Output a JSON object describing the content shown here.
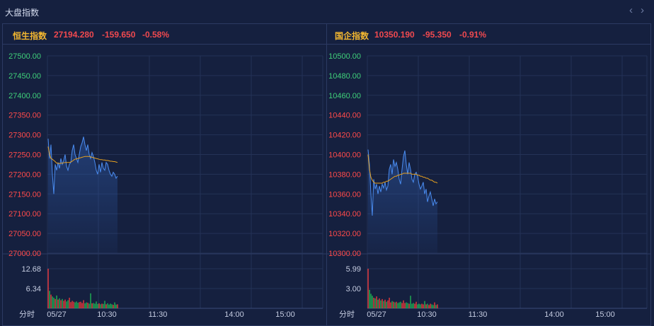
{
  "widget": {
    "title": "大盘指数",
    "prev_icon": "‹",
    "next_icon": "›"
  },
  "panels": [
    {
      "name": "恒生指数",
      "value": "27194.280",
      "change": "-159.650",
      "pct": "-0.58%",
      "y_ticks": [
        "27500.00",
        "27450.00",
        "27400.00",
        "27350.00",
        "27300.00",
        "27250.00",
        "27200.00",
        "27150.00",
        "27100.00",
        "27050.00",
        "27000.00"
      ],
      "y_min": 27000,
      "y_max": 27500,
      "prev_close": 27353.93,
      "vol_ticks": [
        "12.68",
        "6.34"
      ],
      "vol_max": 12.68,
      "x_label": "分时",
      "x_ticks": [
        "05/27",
        "10:30",
        "11:30",
        "14:00",
        "15:00"
      ],
      "price": [
        27290,
        27240,
        27275,
        27200,
        27150,
        27225,
        27210,
        27230,
        27215,
        27240,
        27225,
        27235,
        27250,
        27220,
        27210,
        27225,
        27230,
        27260,
        27275,
        27250,
        27240,
        27230,
        27250,
        27270,
        27280,
        27295,
        27275,
        27260,
        27275,
        27250,
        27240,
        27255,
        27245,
        27230,
        27210,
        27200,
        27225,
        27205,
        27230,
        27215,
        27210,
        27230,
        27225,
        27210,
        27200,
        27195,
        27205,
        27200,
        27190,
        27195
      ],
      "avg": [
        27270,
        27250,
        27240,
        27238,
        27235,
        27232,
        27228,
        27228,
        27227,
        27228,
        27228,
        27229,
        27230,
        27230,
        27230,
        27230,
        27231,
        27233,
        27236,
        27238,
        27239,
        27240,
        27241,
        27242,
        27243,
        27244,
        27245,
        27245,
        27245,
        27245,
        27244,
        27243,
        27242,
        27241,
        27240,
        27239,
        27238,
        27237,
        27237,
        27236,
        27236,
        27235,
        27235,
        27234,
        27233,
        27233,
        27232,
        27232,
        27231,
        27230
      ],
      "volume": [
        12.68,
        5.6,
        4.4,
        3.8,
        3.4,
        3.0,
        4.1,
        2.8,
        3.2,
        2.6,
        3.0,
        2.4,
        2.8,
        2.2,
        2.6,
        3.4,
        2.0,
        2.4,
        2.1,
        1.9,
        2.2,
        1.8,
        2.0,
        2.1,
        1.7,
        2.6,
        1.6,
        1.9,
        1.8,
        1.5,
        4.8,
        1.6,
        1.7,
        1.5,
        2.2,
        1.4,
        1.6,
        1.3,
        1.5,
        1.4,
        2.4,
        1.3,
        1.6,
        1.2,
        1.5,
        1.3,
        1.1,
        1.9,
        1.2,
        1.3
      ]
    },
    {
      "name": "国企指数",
      "value": "10350.190",
      "change": "-95.350",
      "pct": "-0.91%",
      "y_ticks": [
        "10500.00",
        "10480.00",
        "10460.00",
        "10440.00",
        "10420.00",
        "10400.00",
        "10380.00",
        "10360.00",
        "10340.00",
        "10320.00",
        "10300.00"
      ],
      "y_min": 10300,
      "y_max": 10500,
      "prev_close": 10445.54,
      "vol_ticks": [
        "5.99",
        "3.00"
      ],
      "vol_max": 5.99,
      "x_label": "分时",
      "x_ticks": [
        "05/27",
        "10:30",
        "11:30",
        "14:00",
        "15:00"
      ],
      "price": [
        10405,
        10390,
        10360,
        10338,
        10375,
        10365,
        10370,
        10360,
        10368,
        10362,
        10370,
        10366,
        10372,
        10364,
        10368,
        10385,
        10390,
        10380,
        10395,
        10388,
        10392,
        10385,
        10375,
        10370,
        10385,
        10398,
        10404,
        10390,
        10380,
        10392,
        10385,
        10375,
        10372,
        10380,
        10382,
        10378,
        10370,
        10365,
        10368,
        10372,
        10360,
        10365,
        10352,
        10358,
        10362,
        10355,
        10348,
        10355,
        10350,
        10352
      ],
      "avg": [
        10400,
        10385,
        10377,
        10374,
        10372,
        10371,
        10371,
        10371,
        10371,
        10371,
        10371,
        10372,
        10372,
        10373,
        10373,
        10374,
        10375,
        10376,
        10377,
        10378,
        10378,
        10379,
        10379,
        10380,
        10380,
        10381,
        10381,
        10381,
        10381,
        10381,
        10381,
        10380,
        10380,
        10380,
        10380,
        10379,
        10379,
        10378,
        10378,
        10377,
        10377,
        10376,
        10376,
        10375,
        10374,
        10374,
        10373,
        10372,
        10372,
        10371
      ],
      "volume": [
        5.99,
        2.8,
        2.2,
        1.9,
        1.6,
        1.5,
        1.8,
        1.3,
        1.5,
        1.2,
        1.4,
        1.1,
        1.3,
        1.0,
        1.2,
        1.6,
        0.9,
        1.1,
        1.0,
        0.9,
        1.0,
        0.8,
        0.9,
        1.0,
        0.8,
        1.2,
        0.8,
        0.9,
        0.8,
        0.7,
        1.9,
        0.7,
        0.8,
        0.7,
        1.0,
        0.6,
        0.7,
        0.6,
        0.7,
        0.6,
        1.1,
        0.6,
        0.7,
        0.5,
        0.7,
        0.6,
        0.5,
        0.9,
        0.5,
        0.6
      ]
    }
  ],
  "chart_data": [
    {
      "type": "line",
      "title": "恒生指数",
      "ylim": [
        27000,
        27500
      ],
      "x_ticks": [
        "05/27",
        "10:30",
        "11:30",
        "14:00",
        "15:00"
      ],
      "series": [
        {
          "values": [
            27290,
            27240,
            27275,
            27200,
            27150,
            27225,
            27210,
            27230,
            27215,
            27240,
            27225,
            27235,
            27250,
            27220,
            27210,
            27225,
            27230,
            27260,
            27275,
            27250,
            27240,
            27230,
            27250,
            27270,
            27280,
            27295,
            27275,
            27260,
            27275,
            27250,
            27240,
            27255,
            27245,
            27230,
            27210,
            27200,
            27225,
            27205,
            27230,
            27215,
            27210,
            27230,
            27225,
            27210,
            27200,
            27195,
            27205,
            27200,
            27190,
            27195
          ]
        },
        {
          "values": [
            27270,
            27250,
            27240,
            27238,
            27235,
            27232,
            27228,
            27228,
            27227,
            27228,
            27228,
            27229,
            27230,
            27230,
            27230,
            27230,
            27231,
            27233,
            27236,
            27238,
            27239,
            27240,
            27241,
            27242,
            27243,
            27244,
            27245,
            27245,
            27245,
            27245,
            27244,
            27243,
            27242,
            27241,
            27240,
            27239,
            27238,
            27237,
            27237,
            27236,
            27236,
            27235,
            27235,
            27234,
            27233,
            27233,
            27232,
            27232,
            27231,
            27230
          ]
        }
      ],
      "volume_ylim": [
        0,
        12.68
      ]
    },
    {
      "type": "line",
      "title": "国企指数",
      "ylim": [
        10300,
        10500
      ],
      "x_ticks": [
        "05/27",
        "10:30",
        "11:30",
        "14:00",
        "15:00"
      ],
      "series": [
        {
          "values": [
            10405,
            10390,
            10360,
            10338,
            10375,
            10365,
            10370,
            10360,
            10368,
            10362,
            10370,
            10366,
            10372,
            10364,
            10368,
            10385,
            10390,
            10380,
            10395,
            10388,
            10392,
            10385,
            10375,
            10370,
            10385,
            10398,
            10404,
            10390,
            10380,
            10392,
            10385,
            10375,
            10372,
            10380,
            10382,
            10378,
            10370,
            10365,
            10368,
            10372,
            10360,
            10365,
            10352,
            10358,
            10362,
            10355,
            10348,
            10355,
            10350,
            10352
          ]
        },
        {
          "values": [
            10400,
            10385,
            10377,
            10374,
            10372,
            10371,
            10371,
            10371,
            10371,
            10371,
            10371,
            10372,
            10372,
            10373,
            10373,
            10374,
            10375,
            10376,
            10377,
            10378,
            10378,
            10379,
            10379,
            10380,
            10380,
            10381,
            10381,
            10381,
            10381,
            10381,
            10381,
            10380,
            10380,
            10380,
            10380,
            10379,
            10379,
            10378,
            10378,
            10377,
            10377,
            10376,
            10376,
            10375,
            10374,
            10374,
            10373,
            10372,
            10372,
            10371
          ]
        }
      ],
      "volume_ylim": [
        0,
        5.99
      ]
    }
  ],
  "colors": {
    "bg": "#15203f",
    "grid": "#243257",
    "price_line": "#4a8cf0",
    "avg_line": "#e6a020",
    "up": "#ff3a3a",
    "down": "#1fbf56",
    "axis_text": "#c4cbe0"
  }
}
